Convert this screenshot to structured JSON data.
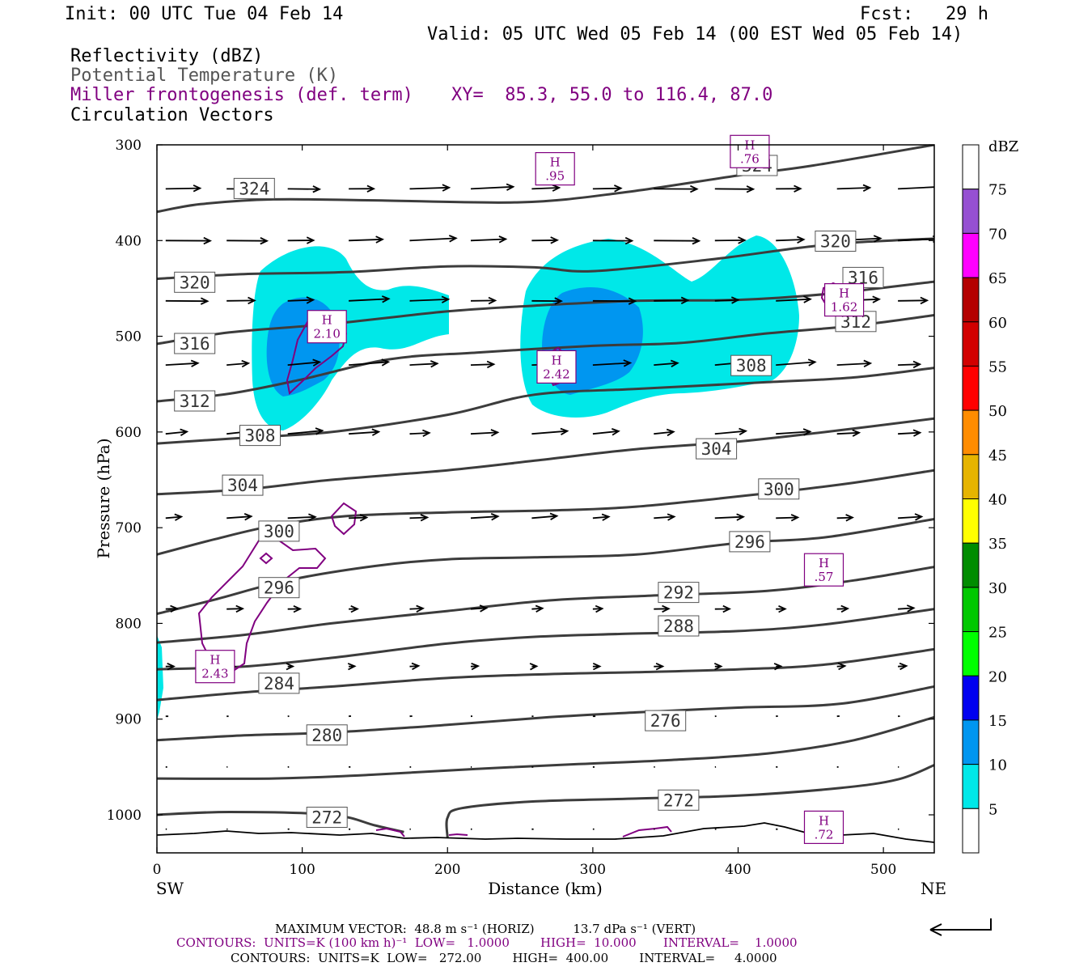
{
  "header": {
    "init": "Init: 00 UTC Tue 04 Feb 14",
    "fcst": "Fcst:   29 h",
    "valid": "Valid: 05 UTC Wed 05 Feb 14 (00 EST Wed 05 Feb 14)",
    "var_reflectivity": "Reflectivity (dBZ)",
    "var_theta": "Potential Temperature (K)",
    "var_frontogenesis": "Miller frontogenesis (def. term)",
    "xy": "XY=  85.3, 55.0 to 116.4, 87.0",
    "var_vectors": "Circulation Vectors"
  },
  "footer": {
    "max_vector": "MAXIMUM VECTOR:  48.8 m s⁻¹ (HORIZ)          13.7 dPa s⁻¹ (VERT)",
    "contours_fronto": "CONTOURS:  UNITS=K (100 km h)⁻¹  LOW=   1.0000        HIGH=  10.000       INTERVAL=    1.0000",
    "contours_theta": "CONTOURS:  UNITS=K  LOW=   272.00        HIGH=  400.00        INTERVAL=     4.0000"
  },
  "colors": {
    "theta": "#3c3c3c",
    "fronto": "#800080",
    "refl_5": "#00e8e8",
    "refl_10": "#0096f0"
  },
  "chart_data": {
    "type": "contour",
    "xlabel": "Distance (km)",
    "ylabel": "Pressure (hPa)",
    "x_range": [
      0,
      535
    ],
    "y_range": [
      300,
      1040
    ],
    "y_log": false,
    "x_ticks": [
      0,
      100,
      200,
      300,
      400,
      500
    ],
    "y_ticks": [
      300,
      400,
      500,
      600,
      700,
      800,
      900,
      1000
    ],
    "x_end_labels": {
      "left": "SW",
      "right": "NE"
    },
    "colorbar": {
      "unit": "dBZ",
      "levels": [
        5,
        10,
        15,
        20,
        25,
        30,
        35,
        40,
        45,
        50,
        55,
        60,
        65,
        70,
        75
      ],
      "colors": [
        "#ffffff",
        "#00e8e8",
        "#0096f0",
        "#0000f0",
        "#00ff00",
        "#00c800",
        "#008c00",
        "#ffff00",
        "#e6b400",
        "#ff8c00",
        "#ff0000",
        "#d20000",
        "#b40000",
        "#ff00ff",
        "#9650d2",
        "#ffffff"
      ]
    },
    "theta_contours": [
      {
        "label": "324",
        "points": [
          [
            0,
            370
          ],
          [
            30,
            362
          ],
          [
            80,
            357
          ],
          [
            150,
            358
          ],
          [
            250,
            360
          ],
          [
            320,
            350
          ],
          [
            400,
            332
          ],
          [
            450,
            322
          ],
          [
            535,
            300
          ]
        ]
      },
      {
        "label": "320",
        "points": [
          [
            0,
            440
          ],
          [
            60,
            435
          ],
          [
            130,
            433
          ],
          [
            200,
            427
          ],
          [
            260,
            428
          ],
          [
            300,
            432
          ],
          [
            380,
            420
          ],
          [
            440,
            408
          ],
          [
            480,
            402
          ],
          [
            535,
            398
          ]
        ]
      },
      {
        "label": "316",
        "points": [
          [
            0,
            508
          ],
          [
            50,
            496
          ],
          [
            120,
            487
          ],
          [
            200,
            474
          ],
          [
            260,
            468
          ],
          [
            330,
            463
          ],
          [
            400,
            462
          ],
          [
            460,
            456
          ],
          [
            535,
            443
          ]
        ]
      },
      {
        "label": "312",
        "points": [
          [
            0,
            568
          ],
          [
            50,
            560
          ],
          [
            100,
            545
          ],
          [
            160,
            524
          ],
          [
            220,
            517
          ],
          [
            300,
            510
          ],
          [
            360,
            507
          ],
          [
            420,
            497
          ],
          [
            480,
            489
          ],
          [
            535,
            478
          ]
        ]
      },
      {
        "label": "308",
        "points": [
          [
            0,
            612
          ],
          [
            60,
            606
          ],
          [
            120,
            600
          ],
          [
            200,
            582
          ],
          [
            260,
            561
          ],
          [
            330,
            555
          ],
          [
            420,
            548
          ],
          [
            480,
            543
          ],
          [
            535,
            533
          ]
        ]
      },
      {
        "label": "304",
        "points": [
          [
            0,
            665
          ],
          [
            60,
            660
          ],
          [
            120,
            650
          ],
          [
            200,
            640
          ],
          [
            260,
            630
          ],
          [
            330,
            618
          ],
          [
            400,
            610
          ],
          [
            460,
            600
          ],
          [
            535,
            586
          ]
        ]
      },
      {
        "label": "300",
        "points": [
          [
            0,
            728
          ],
          [
            40,
            712
          ],
          [
            80,
            698
          ],
          [
            130,
            688
          ],
          [
            200,
            684
          ],
          [
            270,
            682
          ],
          [
            330,
            678
          ],
          [
            420,
            664
          ],
          [
            480,
            653
          ],
          [
            535,
            640
          ]
        ]
      },
      {
        "label": "296",
        "points": [
          [
            0,
            790
          ],
          [
            40,
            775
          ],
          [
            90,
            755
          ],
          [
            150,
            740
          ],
          [
            200,
            733
          ],
          [
            260,
            731
          ],
          [
            330,
            728
          ],
          [
            400,
            716
          ],
          [
            460,
            710
          ],
          [
            535,
            691
          ]
        ]
      },
      {
        "label": "292",
        "points": [
          [
            0,
            820
          ],
          [
            60,
            812
          ],
          [
            120,
            800
          ],
          [
            200,
            787
          ],
          [
            270,
            776
          ],
          [
            340,
            771
          ],
          [
            420,
            766
          ],
          [
            480,
            755
          ],
          [
            535,
            741
          ]
        ]
      },
      {
        "label": "288",
        "points": [
          [
            0,
            848
          ],
          [
            60,
            845
          ],
          [
            120,
            836
          ],
          [
            200,
            821
          ],
          [
            260,
            814
          ],
          [
            320,
            811
          ],
          [
            400,
            808
          ],
          [
            460,
            801
          ],
          [
            535,
            785
          ]
        ]
      },
      {
        "label": "284",
        "points": [
          [
            0,
            880
          ],
          [
            60,
            872
          ],
          [
            120,
            866
          ],
          [
            200,
            857
          ],
          [
            270,
            853
          ],
          [
            330,
            851
          ],
          [
            400,
            848
          ],
          [
            460,
            843
          ],
          [
            535,
            827
          ]
        ]
      },
      {
        "label": "280",
        "points": [
          [
            0,
            922
          ],
          [
            60,
            917
          ],
          [
            120,
            914
          ],
          [
            200,
            906
          ],
          [
            270,
            898
          ],
          [
            330,
            893
          ],
          [
            400,
            888
          ],
          [
            470,
            884
          ],
          [
            535,
            866
          ]
        ]
      },
      {
        "label": "276",
        "points": [
          [
            0,
            962
          ],
          [
            80,
            962
          ],
          [
            150,
            958
          ],
          [
            220,
            952
          ],
          [
            290,
            947
          ],
          [
            350,
            943
          ],
          [
            420,
            936
          ],
          [
            480,
            922
          ],
          [
            535,
            898
          ]
        ]
      },
      {
        "label": "272",
        "points": [
          [
            0,
            1000
          ],
          [
            50,
            997
          ],
          [
            120,
            1000
          ],
          [
            150,
            1011
          ],
          [
            170,
            1018
          ]
        ]
      },
      {
        "label": "272b",
        "points": [
          [
            200,
            1024
          ],
          [
            200,
            1003
          ],
          [
            210,
            993
          ],
          [
            260,
            986
          ],
          [
            330,
            983
          ],
          [
            400,
            980
          ],
          [
            470,
            972
          ],
          [
            510,
            963
          ],
          [
            535,
            948
          ]
        ]
      }
    ],
    "theta_labels": [
      {
        "text": "324",
        "x": 67,
        "p": 346
      },
      {
        "text": "324",
        "x": 413,
        "p": 322
      },
      {
        "text": "320",
        "x": 26,
        "p": 444
      },
      {
        "text": "320",
        "x": 467,
        "p": 401
      },
      {
        "text": "316",
        "x": 26,
        "p": 508
      },
      {
        "text": "316",
        "x": 486,
        "p": 439
      },
      {
        "text": "312",
        "x": 26,
        "p": 568
      },
      {
        "text": "312",
        "x": 481,
        "p": 485
      },
      {
        "text": "308",
        "x": 71,
        "p": 604
      },
      {
        "text": "308",
        "x": 409,
        "p": 531
      },
      {
        "text": "304",
        "x": 59,
        "p": 656
      },
      {
        "text": "304",
        "x": 385,
        "p": 618
      },
      {
        "text": "300",
        "x": 84,
        "p": 704
      },
      {
        "text": "300",
        "x": 428,
        "p": 660
      },
      {
        "text": "296",
        "x": 84,
        "p": 763
      },
      {
        "text": "296",
        "x": 408,
        "p": 715
      },
      {
        "text": "292",
        "x": 359,
        "p": 768
      },
      {
        "text": "288",
        "x": 359,
        "p": 803
      },
      {
        "text": "284",
        "x": 84,
        "p": 863
      },
      {
        "text": "280",
        "x": 117,
        "p": 917
      },
      {
        "text": "276",
        "x": 350,
        "p": 902
      },
      {
        "text": "272",
        "x": 117,
        "p": 1003
      },
      {
        "text": "272",
        "x": 359,
        "p": 985
      }
    ],
    "fronto_maxima": [
      {
        "value": ".95",
        "x": 274,
        "p": 325
      },
      {
        "value": ".76",
        "x": 408,
        "p": 307
      },
      {
        "value": "2.10",
        "x": 117,
        "p": 490
      },
      {
        "value": "2.42",
        "x": 275,
        "p": 532
      },
      {
        "value": "1.62",
        "x": 473,
        "p": 462
      },
      {
        "value": ".57",
        "x": 459,
        "p": 744
      },
      {
        "value": "2.43",
        "x": 40,
        "p": 845
      },
      {
        "value": ".72",
        "x": 459,
        "p": 1013
      }
    ],
    "max_vector": {
      "horiz": 48.8,
      "vert": 13.7
    }
  }
}
